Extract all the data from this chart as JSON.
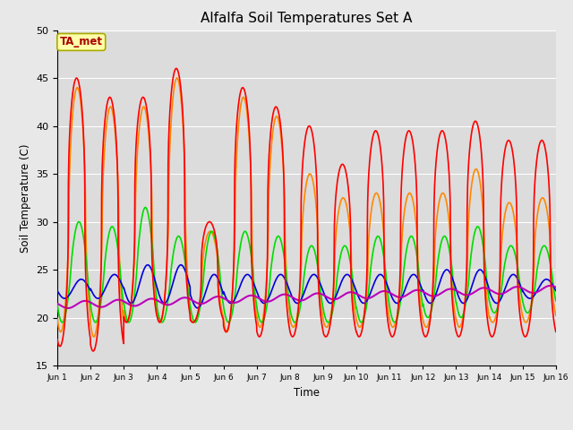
{
  "title": "Alfalfa Soil Temperatures Set A",
  "xlabel": "Time",
  "ylabel": "Soil Temperature (C)",
  "ylim": [
    15,
    50
  ],
  "xlim": [
    0,
    15
  ],
  "background_color": "#e8e8e8",
  "plot_bg_color": "#dcdcdc",
  "annotation_text": "TA_met",
  "annotation_color": "#aa0000",
  "annotation_bg": "#ffffaa",
  "annotation_border": "#aaaa00",
  "series_colors": {
    "-2cm": "#ff0000",
    "-4cm": "#ff8800",
    "-8cm": "#00dd00",
    "-16cm": "#0000dd",
    "-32cm": "#bb00bb"
  },
  "tick_labels": [
    "Jun 1",
    "Jun 2",
    "Jun 3",
    "Jun 4",
    "Jun 5",
    "Jun 6",
    "Jun 7",
    "Jun 8",
    "Jun 9",
    "Jun 10",
    "Jun 11",
    "Jun 12",
    "Jun 13",
    "Jun 14",
    "Jun 15",
    "Jun 16"
  ],
  "grid_color": "#ffffff",
  "n_days": 15,
  "figsize": [
    6.4,
    4.8
  ],
  "dpi": 100
}
